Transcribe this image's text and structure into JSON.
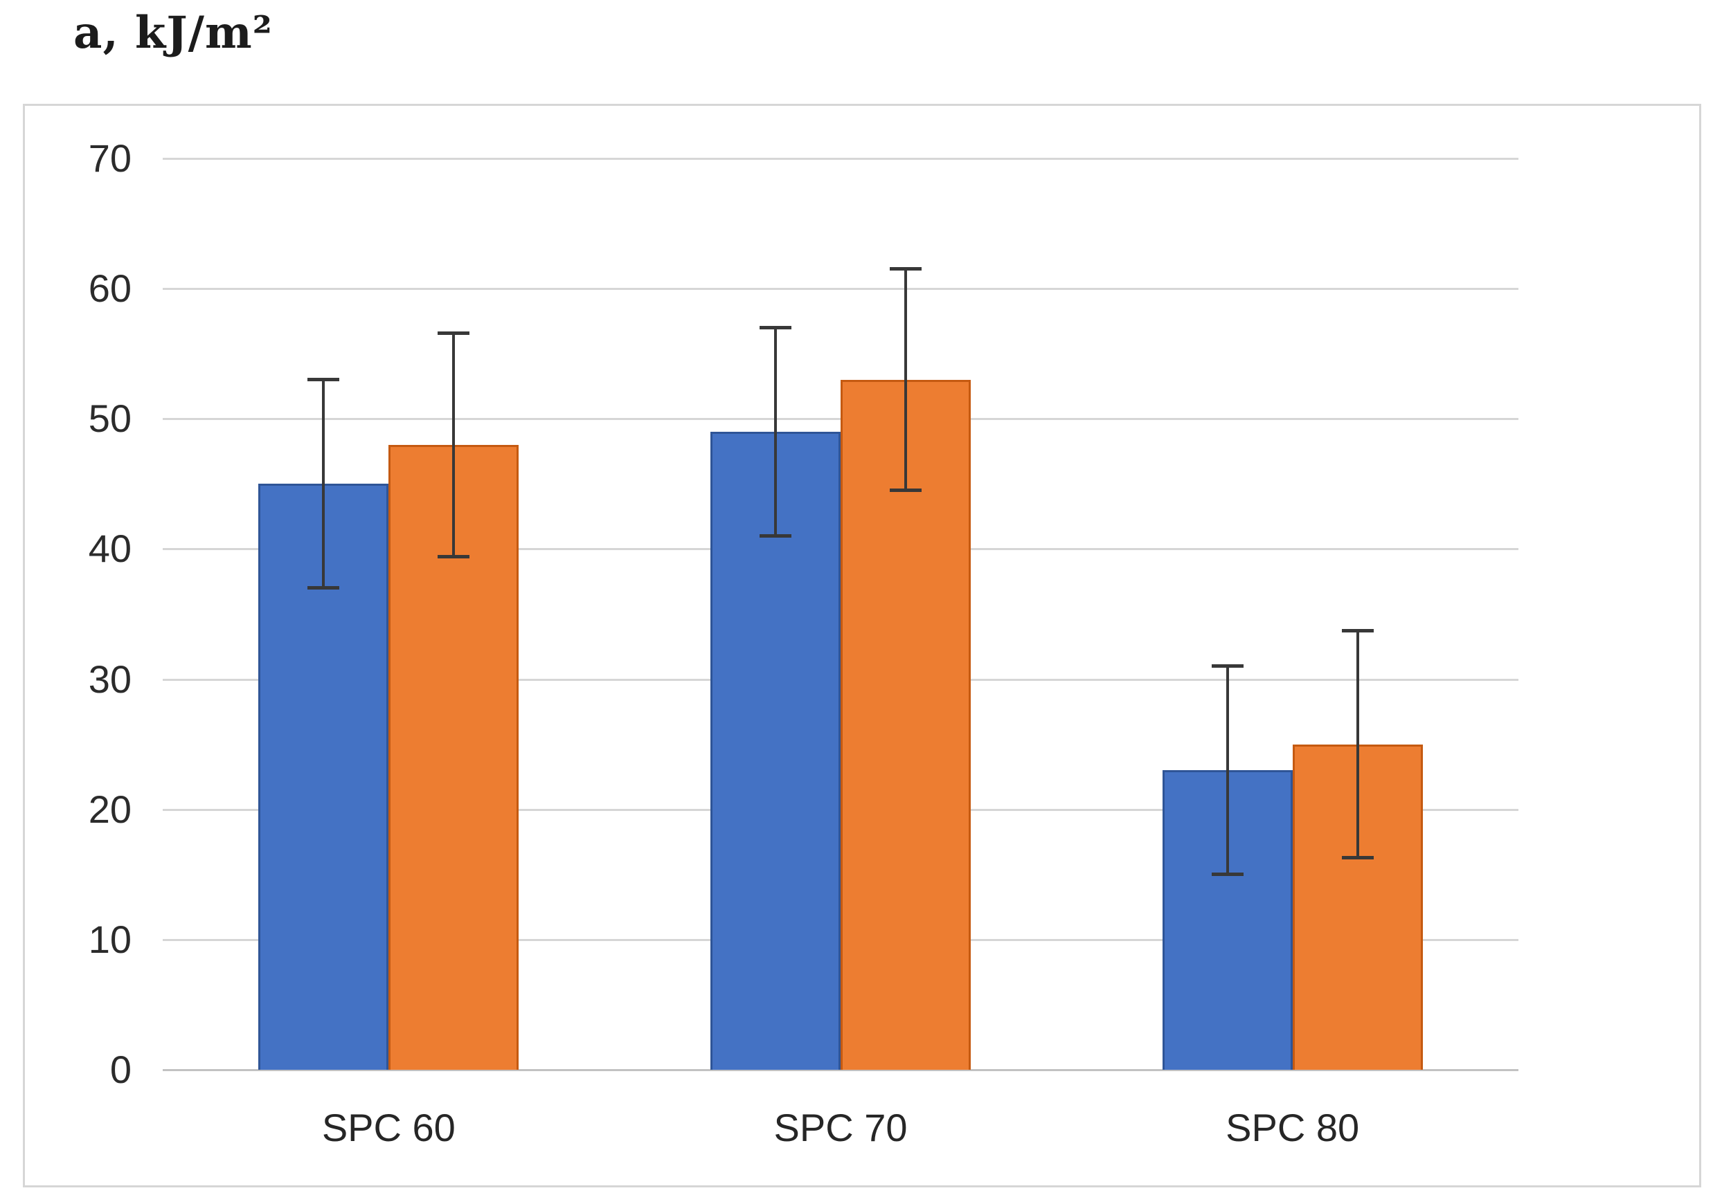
{
  "chart_data": {
    "type": "bar",
    "title": "a, kJ/m²",
    "ylabel": "a, kJ/m²",
    "xlabel": "",
    "categories": [
      "SPC 60",
      "SPC 70",
      "SPC 80"
    ],
    "series": [
      {
        "name": "series-1-blue",
        "fill_color": "#4472C4",
        "border_color": "#2F5597",
        "values": [
          45,
          49,
          23
        ],
        "error_low": [
          37,
          41,
          15
        ],
        "error_high": [
          53,
          57,
          31
        ]
      },
      {
        "name": "series-2-orange",
        "fill_color": "#ED7D31",
        "border_color": "#C55A11",
        "values": [
          48,
          53,
          25
        ],
        "error_low": [
          39.4,
          44.5,
          16.3
        ],
        "error_high": [
          56.6,
          61.5,
          33.7
        ]
      }
    ],
    "ylim": [
      0,
      70
    ],
    "yticks": [
      0,
      10,
      20,
      30,
      40,
      50,
      60,
      70
    ],
    "ytick_interval": 10,
    "grid": true,
    "legend": false,
    "colors": {
      "gridline": "#d6d6d6",
      "axis_line": "#c2c2c2",
      "error_bar": "#383838",
      "frame_border": "#d6d6d6",
      "tick_label": "#2b2b2b",
      "category_label": "#262626",
      "title": "#1c1c1c",
      "background": "#ffffff"
    }
  }
}
